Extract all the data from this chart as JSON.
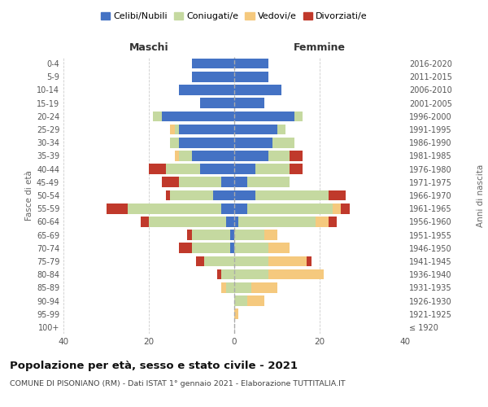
{
  "age_groups": [
    "100+",
    "95-99",
    "90-94",
    "85-89",
    "80-84",
    "75-79",
    "70-74",
    "65-69",
    "60-64",
    "55-59",
    "50-54",
    "45-49",
    "40-44",
    "35-39",
    "30-34",
    "25-29",
    "20-24",
    "15-19",
    "10-14",
    "5-9",
    "0-4"
  ],
  "birth_years": [
    "≤ 1920",
    "1921-1925",
    "1926-1930",
    "1931-1935",
    "1936-1940",
    "1941-1945",
    "1946-1950",
    "1951-1955",
    "1956-1960",
    "1961-1965",
    "1966-1970",
    "1971-1975",
    "1976-1980",
    "1981-1985",
    "1986-1990",
    "1991-1995",
    "1996-2000",
    "2001-2005",
    "2006-2010",
    "2011-2015",
    "2016-2020"
  ],
  "males": {
    "celibi": [
      0,
      0,
      0,
      0,
      0,
      0,
      1,
      1,
      2,
      3,
      5,
      3,
      8,
      10,
      13,
      13,
      17,
      8,
      13,
      10,
      10
    ],
    "coniugati": [
      0,
      0,
      0,
      2,
      3,
      7,
      9,
      9,
      18,
      22,
      10,
      10,
      8,
      3,
      2,
      1,
      2,
      0,
      0,
      0,
      0
    ],
    "vedovi": [
      0,
      0,
      0,
      1,
      0,
      0,
      0,
      0,
      0,
      0,
      0,
      0,
      0,
      1,
      0,
      1,
      0,
      0,
      0,
      0,
      0
    ],
    "divorziati": [
      0,
      0,
      0,
      0,
      1,
      2,
      3,
      1,
      2,
      5,
      1,
      4,
      4,
      0,
      0,
      0,
      0,
      0,
      0,
      0,
      0
    ]
  },
  "females": {
    "nubili": [
      0,
      0,
      0,
      0,
      0,
      0,
      0,
      0,
      1,
      3,
      5,
      3,
      5,
      8,
      9,
      10,
      14,
      7,
      11,
      8,
      8
    ],
    "coniugate": [
      0,
      0,
      3,
      4,
      8,
      8,
      8,
      7,
      18,
      20,
      17,
      10,
      8,
      5,
      5,
      2,
      2,
      0,
      0,
      0,
      0
    ],
    "vedove": [
      0,
      1,
      4,
      6,
      13,
      9,
      5,
      3,
      3,
      2,
      0,
      0,
      0,
      0,
      0,
      0,
      0,
      0,
      0,
      0,
      0
    ],
    "divorziate": [
      0,
      0,
      0,
      0,
      0,
      1,
      0,
      0,
      2,
      2,
      4,
      0,
      3,
      3,
      0,
      0,
      0,
      0,
      0,
      0,
      0
    ]
  },
  "colors": {
    "celibi_nubili": "#4472c4",
    "coniugati": "#c5d9a0",
    "vedovi": "#f5c97e",
    "divorziati": "#c0392b"
  },
  "xlim": 40,
  "title": "Popolazione per età, sesso e stato civile - 2021",
  "subtitle": "COMUNE DI PISONIANO (RM) - Dati ISTAT 1° gennaio 2021 - Elaborazione TUTTITALIA.IT",
  "ylabel_left": "Fasce di età",
  "ylabel_right": "Anni di nascita",
  "xlabel_left": "Maschi",
  "xlabel_right": "Femmine",
  "legend_labels": [
    "Celibi/Nubili",
    "Coniugati/e",
    "Vedovi/e",
    "Divorziati/e"
  ],
  "background_color": "#ffffff",
  "grid_color": "#cccccc"
}
